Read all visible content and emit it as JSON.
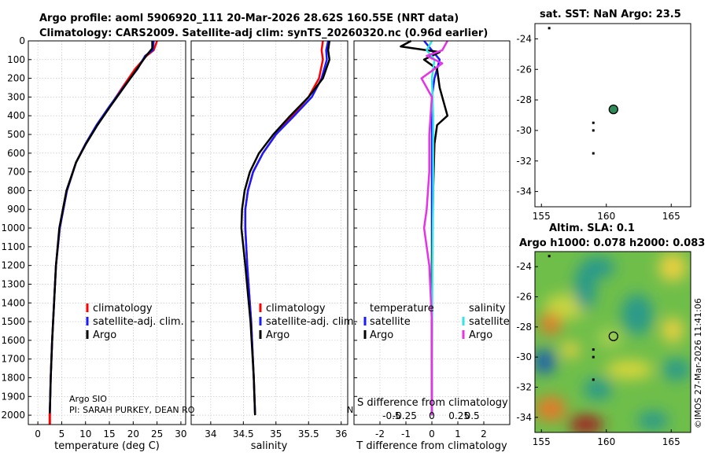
{
  "header": {
    "line1": "Argo profile: aoml 5906920_111 20-Mar-2026 28.62S 160.55E (NRT data)",
    "line2": "Climatology: CARS2009. Satellite-adj clim: synTS_20260320.nc (0.96d earlier)"
  },
  "legend": {
    "climatology": "climatology",
    "satellite_adj": "satellite-adj. clim.",
    "argo": "Argo",
    "temperature": "temperature",
    "salinity": "salinity",
    "satellite": "satellite"
  },
  "info": {
    "source": "Argo SIO",
    "pi": "PI: SARAH PURKEY, DEAN RO",
    "diff_title": "S difference from climatology",
    "n_fragment": "N"
  },
  "watermark": "©IMOS 27-Mar-2026 11:41:06",
  "colors": {
    "climatology": "#ff0000",
    "satellite_adj": "#1a1aff",
    "argo": "#000000",
    "sat_salinity": "#33e6e6",
    "argo_salinity": "#e633e6",
    "float_marker": "#2e8b57"
  },
  "chart_data": [
    {
      "id": "temperature",
      "type": "line",
      "xlabel": "temperature (deg C)",
      "ylabel": "",
      "xlim": [
        -2,
        31
      ],
      "ylim": [
        2050,
        0
      ],
      "xticks": [
        0,
        5,
        10,
        15,
        20,
        25,
        30
      ],
      "yticks": [
        0,
        100,
        200,
        300,
        400,
        500,
        600,
        700,
        800,
        900,
        1000,
        1100,
        1200,
        1300,
        1400,
        1500,
        1600,
        1700,
        1800,
        1900,
        2000
      ],
      "series": [
        {
          "name": "climatology",
          "color": "#ff0000",
          "depth": [
            0,
            50,
            80,
            150,
            250,
            350,
            450,
            550,
            650,
            800,
            1000,
            1200,
            1400,
            1600,
            1800,
            2000
          ],
          "values": [
            25.0,
            24.3,
            22.8,
            20.4,
            17.7,
            15.1,
            12.4,
            10.0,
            8.0,
            6.1,
            4.6,
            3.8,
            3.4,
            3.0,
            2.7,
            2.5
          ]
        },
        {
          "name": "satellite-adj. clim.",
          "color": "#1a1aff",
          "depth": [
            0,
            50,
            80,
            150,
            250,
            350,
            450,
            550,
            650,
            800,
            1000,
            1200,
            1400,
            1600,
            1800,
            2000
          ],
          "values": [
            24.3,
            24.1,
            22.5,
            20.9,
            17.9,
            15.0,
            12.3,
            10.0,
            8.0,
            6.1,
            4.6,
            3.8,
            3.4,
            3.0,
            2.7,
            2.5
          ]
        },
        {
          "name": "Argo",
          "color": "#000000",
          "depth": [
            0,
            40,
            80,
            150,
            250,
            350,
            450,
            550,
            650,
            800,
            1000,
            1200,
            1400,
            1600,
            1800,
            2000
          ],
          "values": [
            24.0,
            24.0,
            22.7,
            20.8,
            18.0,
            15.2,
            12.5,
            10.1,
            8.0,
            6.0,
            4.5,
            3.8,
            3.4,
            3.0,
            2.7,
            2.5
          ]
        }
      ]
    },
    {
      "id": "salinity",
      "type": "line",
      "xlabel": "salinity",
      "ylabel": "",
      "xlim": [
        33.7,
        36.1
      ],
      "ylim": [
        2050,
        0
      ],
      "xticks": [
        34,
        34.5,
        35,
        35.5,
        36
      ],
      "series": [
        {
          "name": "climatology",
          "color": "#ff0000",
          "depth": [
            0,
            50,
            100,
            200,
            300,
            400,
            500,
            600,
            700,
            800,
            900,
            1000,
            1200,
            1500,
            1800,
            2000
          ],
          "values": [
            35.72,
            35.7,
            35.72,
            35.66,
            35.5,
            35.25,
            35.0,
            34.8,
            34.65,
            34.57,
            34.53,
            34.53,
            34.56,
            34.62,
            34.66,
            34.68
          ]
        },
        {
          "name": "satellite-adj. clim.",
          "color": "#1a1aff",
          "depth": [
            0,
            50,
            100,
            200,
            300,
            400,
            500,
            600,
            700,
            800,
            900,
            1000,
            1200,
            1500,
            1800,
            2000
          ],
          "values": [
            35.8,
            35.77,
            35.78,
            35.7,
            35.55,
            35.28,
            35.0,
            34.8,
            34.65,
            34.57,
            34.53,
            34.53,
            34.56,
            34.62,
            34.66,
            34.68
          ]
        },
        {
          "name": "Argo",
          "color": "#000000",
          "depth": [
            0,
            50,
            100,
            200,
            300,
            400,
            500,
            600,
            700,
            800,
            900,
            1000,
            1200,
            1500,
            1800,
            2000
          ],
          "values": [
            35.82,
            35.8,
            35.82,
            35.72,
            35.5,
            35.22,
            34.96,
            34.74,
            34.6,
            34.52,
            34.48,
            34.47,
            34.53,
            34.61,
            34.66,
            34.68
          ]
        }
      ]
    },
    {
      "id": "difference",
      "type": "line",
      "xlabel": "T difference from climatology",
      "ylabel": "",
      "xlim": [
        -3,
        3
      ],
      "ylim": [
        2050,
        0
      ],
      "xticks": [
        -2,
        -1,
        0,
        1,
        2
      ],
      "xticks_salinity": [
        "-0.5",
        "-0.25",
        "0",
        "0.25",
        "0.5"
      ],
      "series": [
        {
          "name": "temperature satellite",
          "color": "#1a1aff",
          "depth": [
            0,
            50,
            100,
            200,
            300,
            500,
            800,
            1200,
            1600,
            2000
          ],
          "values": [
            -0.3,
            0.0,
            0.3,
            0.1,
            0.0,
            0.0,
            0.0,
            0.0,
            0.0,
            0.0
          ]
        },
        {
          "name": "temperature Argo",
          "color": "#000000",
          "depth": [
            0,
            30,
            60,
            100,
            150,
            250,
            350,
            400,
            450,
            550,
            800,
            1200,
            1600,
            2000
          ],
          "values": [
            -0.8,
            -1.2,
            0.3,
            -0.3,
            0.2,
            0.3,
            0.5,
            0.6,
            0.2,
            0.1,
            0.05,
            0.0,
            0.0,
            0.0
          ]
        },
        {
          "name": "salinity satellite",
          "color": "#33e6e6",
          "depth": [
            0,
            50,
            100,
            200,
            400,
            800,
            1200,
            1600,
            2000
          ],
          "values": [
            0.0,
            -0.2,
            0.1,
            0.0,
            0.05,
            0.05,
            0.02,
            0.01,
            0.0
          ]
        },
        {
          "name": "salinity Argo",
          "color": "#e633e6",
          "depth": [
            0,
            50,
            80,
            120,
            200,
            300,
            500,
            700,
            900,
            1000,
            1200,
            1500,
            1800,
            2000
          ],
          "values": [
            0.6,
            0.4,
            -0.2,
            0.4,
            -0.4,
            0.0,
            -0.1,
            -0.1,
            -0.2,
            -0.3,
            -0.1,
            0.0,
            0.0,
            0.0
          ]
        }
      ]
    },
    {
      "id": "sst_map",
      "type": "scatter",
      "title": "sat. SST: NaN Argo: 23.5",
      "xlim": [
        154.5,
        166.5
      ],
      "ylim": [
        -35,
        -23
      ],
      "xticks": [
        155,
        160,
        165
      ],
      "yticks": [
        -24,
        -26,
        -28,
        -30,
        -32,
        -34
      ],
      "points": [
        {
          "lon": 160.55,
          "lat": -28.62,
          "role": "float"
        },
        {
          "lon": 155.6,
          "lat": -23.3,
          "role": "other"
        },
        {
          "lon": 159.0,
          "lat": -29.5,
          "role": "other"
        },
        {
          "lon": 159.0,
          "lat": -30.0,
          "role": "other"
        },
        {
          "lon": 159.0,
          "lat": -31.5,
          "role": "other"
        }
      ]
    },
    {
      "id": "sla_map",
      "type": "heatmap",
      "title_line1": "Altim. SLA: 0.1",
      "title_line2": "Argo h1000: 0.078 h2000: 0.083",
      "xlim": [
        154.5,
        166.5
      ],
      "ylim": [
        -35,
        -23
      ],
      "xticks": [
        155,
        160,
        165
      ],
      "yticks": [
        -24,
        -26,
        -28,
        -30,
        -32,
        -34
      ],
      "points": [
        {
          "lon": 160.55,
          "lat": -28.62,
          "role": "float"
        },
        {
          "lon": 155.6,
          "lat": -23.3,
          "role": "other"
        },
        {
          "lon": 159.0,
          "lat": -29.5,
          "role": "other"
        },
        {
          "lon": 159.0,
          "lat": -30.0,
          "role": "other"
        },
        {
          "lon": 159.0,
          "lat": -31.5,
          "role": "other"
        }
      ]
    }
  ]
}
